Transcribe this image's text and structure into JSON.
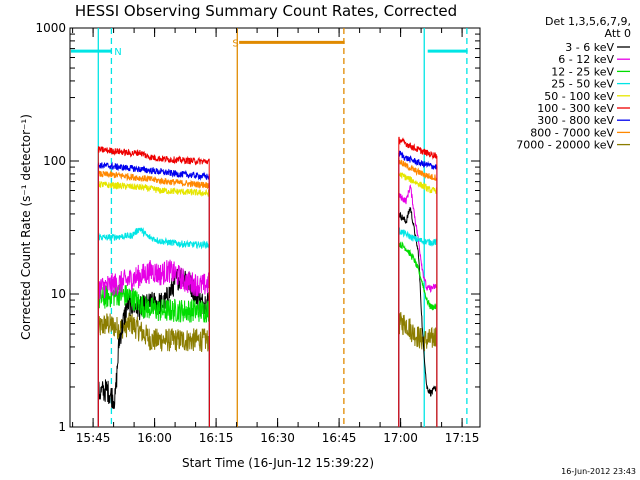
{
  "chart_data": {
    "type": "line",
    "title": "HESSI Observing Summary Count Rates, Corrected",
    "xlabel": "Start Time (16-Jun-12 15:39:22)",
    "ylabel": "Corrected Count Rate (s⁻¹ detector⁻¹)",
    "yscale": "log",
    "ylim": [
      1,
      1000
    ],
    "xlim_minutes_after_15_39_22": [
      0,
      100
    ],
    "x_ticks": [
      "15:45",
      "16:00",
      "16:15",
      "16:30",
      "16:45",
      "17:00",
      "17:15"
    ],
    "y_ticks": [
      "1",
      "10",
      "100",
      "1000"
    ],
    "legend_header": [
      "Det 1,3,5,6,7,9,",
      "Att 0"
    ],
    "timestamp": "16-Jun-2012 23:43",
    "annotations": [
      {
        "label": "N",
        "color": "#00e5e5"
      },
      {
        "label": "S",
        "color": "#e08a00"
      }
    ],
    "segments": [
      {
        "name": "day1",
        "x": [
          6.9,
          34.1
        ]
      },
      {
        "name": "day2",
        "x": [
          80.2,
          89.5
        ]
      }
    ],
    "series": [
      {
        "name": "3 - 6 keV",
        "color": "#000000",
        "seg1": [
          [
            6.9,
            1.8
          ],
          [
            9,
            1.9
          ],
          [
            11,
            1.6
          ],
          [
            12,
            4.5
          ],
          [
            14,
            8.5
          ],
          [
            17,
            7.8
          ],
          [
            20,
            8.5
          ],
          [
            23,
            8.5
          ],
          [
            26,
            13
          ],
          [
            28,
            14
          ],
          [
            30,
            11
          ],
          [
            32,
            8.5
          ],
          [
            34,
            9
          ]
        ],
        "seg2": [
          [
            80.2,
            40
          ],
          [
            82,
            35
          ],
          [
            83,
            45
          ],
          [
            84,
            30
          ],
          [
            85,
            20
          ],
          [
            86,
            5
          ],
          [
            87,
            2
          ],
          [
            88,
            1.8
          ],
          [
            89.5,
            2
          ]
        ]
      },
      {
        "name": "6 - 12 keV",
        "color": "#e600e6",
        "seg1": [
          [
            6.9,
            11
          ],
          [
            9,
            11.5
          ],
          [
            12,
            12
          ],
          [
            15,
            13
          ],
          [
            18,
            14
          ],
          [
            20,
            15
          ],
          [
            22,
            14
          ],
          [
            24,
            15
          ],
          [
            26,
            14
          ],
          [
            28,
            12.5
          ],
          [
            30,
            12
          ],
          [
            32,
            11.5
          ],
          [
            34,
            12
          ]
        ],
        "seg2": [
          [
            80.2,
            55
          ],
          [
            82,
            50
          ],
          [
            83,
            65
          ],
          [
            84,
            40
          ],
          [
            85,
            25
          ],
          [
            86,
            15
          ],
          [
            87,
            11
          ],
          [
            88,
            11
          ],
          [
            89.5,
            11.5
          ]
        ]
      },
      {
        "name": "12 - 25 keV",
        "color": "#00dd00",
        "seg1": [
          [
            6.9,
            9
          ],
          [
            9,
            9.5
          ],
          [
            12,
            10
          ],
          [
            15,
            9.5
          ],
          [
            18,
            8
          ],
          [
            22,
            7.5
          ],
          [
            26,
            7.5
          ],
          [
            30,
            7.5
          ],
          [
            34,
            7.5
          ]
        ],
        "seg2": [
          [
            80.2,
            24
          ],
          [
            82,
            22
          ],
          [
            84,
            18
          ],
          [
            85,
            15
          ],
          [
            86,
            12
          ],
          [
            87,
            9
          ],
          [
            88,
            8
          ],
          [
            89.5,
            8
          ]
        ]
      },
      {
        "name": "25 - 50 keV",
        "color": "#00e5e5",
        "seg1": [
          [
            6.9,
            27
          ],
          [
            9,
            26.5
          ],
          [
            12,
            27
          ],
          [
            15,
            27.5
          ],
          [
            17,
            31
          ],
          [
            19,
            27
          ],
          [
            22,
            25
          ],
          [
            26,
            24
          ],
          [
            30,
            23.5
          ],
          [
            34,
            23.5
          ]
        ],
        "seg2": [
          [
            80.2,
            30
          ],
          [
            82,
            28
          ],
          [
            84,
            26
          ],
          [
            86,
            25
          ],
          [
            88,
            24.5
          ],
          [
            89.5,
            24.5
          ]
        ]
      },
      {
        "name": "50 - 100 keV",
        "color": "#e6e600",
        "seg1": [
          [
            6.9,
            67
          ],
          [
            9,
            66
          ],
          [
            12,
            65
          ],
          [
            15,
            64
          ],
          [
            18,
            63
          ],
          [
            22,
            60
          ],
          [
            26,
            59
          ],
          [
            30,
            58
          ],
          [
            34,
            57
          ]
        ],
        "seg2": [
          [
            80.2,
            80
          ],
          [
            82,
            75
          ],
          [
            84,
            70
          ],
          [
            86,
            65
          ],
          [
            88,
            60
          ],
          [
            89.5,
            60
          ]
        ]
      },
      {
        "name": "100 - 300 keV",
        "color": "#ee0000",
        "seg1": [
          [
            6.9,
            122
          ],
          [
            9,
            120
          ],
          [
            12,
            118
          ],
          [
            15,
            114
          ],
          [
            17,
            116
          ],
          [
            19,
            108
          ],
          [
            22,
            104
          ],
          [
            26,
            102
          ],
          [
            30,
            100
          ],
          [
            34,
            99
          ]
        ],
        "seg2": [
          [
            80.2,
            145
          ],
          [
            82,
            135
          ],
          [
            84,
            125
          ],
          [
            86,
            118
          ],
          [
            88,
            112
          ],
          [
            89.5,
            110
          ]
        ]
      },
      {
        "name": "300 - 800 keV",
        "color": "#0000ee",
        "seg1": [
          [
            6.9,
            93
          ],
          [
            9,
            92
          ],
          [
            12,
            90
          ],
          [
            15,
            88
          ],
          [
            18,
            86
          ],
          [
            22,
            83
          ],
          [
            26,
            80
          ],
          [
            30,
            78
          ],
          [
            34,
            76
          ]
        ],
        "seg2": [
          [
            80.2,
            115
          ],
          [
            82,
            105
          ],
          [
            84,
            100
          ],
          [
            86,
            95
          ],
          [
            88,
            92
          ],
          [
            89.5,
            90
          ]
        ]
      },
      {
        "name": "800 - 7000 keV",
        "color": "#ff8800",
        "seg1": [
          [
            6.9,
            80
          ],
          [
            9,
            79
          ],
          [
            12,
            78
          ],
          [
            15,
            76
          ],
          [
            18,
            74
          ],
          [
            22,
            71
          ],
          [
            26,
            69
          ],
          [
            30,
            67
          ],
          [
            34,
            66
          ]
        ],
        "seg2": [
          [
            80.2,
            100
          ],
          [
            82,
            92
          ],
          [
            84,
            85
          ],
          [
            86,
            80
          ],
          [
            88,
            76
          ],
          [
            89.5,
            75
          ]
        ]
      },
      {
        "name": "7000 - 20000 keV",
        "color": "#8b7d00",
        "seg1": [
          [
            6.9,
            5.5
          ],
          [
            9,
            6
          ],
          [
            12,
            5.5
          ],
          [
            15,
            6
          ],
          [
            18,
            5
          ],
          [
            20,
            4.5
          ],
          [
            24,
            4.5
          ],
          [
            28,
            4.5
          ],
          [
            34,
            4.5
          ]
        ],
        "seg2": [
          [
            80.2,
            6
          ],
          [
            82,
            6
          ],
          [
            84,
            5
          ],
          [
            86,
            4.5
          ],
          [
            88,
            4.5
          ],
          [
            89.5,
            5
          ]
        ]
      }
    ],
    "attenuator_bars": [
      {
        "color": "#00e5e5",
        "x": [
          0,
          10
        ],
        "y": 670
      },
      {
        "color": "#e08a00",
        "x": [
          41,
          67
        ],
        "y": 780
      },
      {
        "color": "#00e5e5",
        "x": [
          87,
          97
        ],
        "y": 670
      }
    ],
    "vlines": [
      {
        "color": "#00e5e5",
        "x": 6.9,
        "style": "solid"
      },
      {
        "color": "#00e5e5",
        "x": 10.1,
        "style": "dashed"
      },
      {
        "color": "#e08a00",
        "x": 40.8,
        "style": "solid"
      },
      {
        "color": "#e08a00",
        "x": 66.8,
        "style": "dashed"
      },
      {
        "color": "#00e5e5",
        "x": 86.4,
        "style": "solid"
      },
      {
        "color": "#00e5e5",
        "x": 96.8,
        "style": "dashed"
      }
    ],
    "annotation_x": [
      10.8,
      39.6
    ]
  }
}
